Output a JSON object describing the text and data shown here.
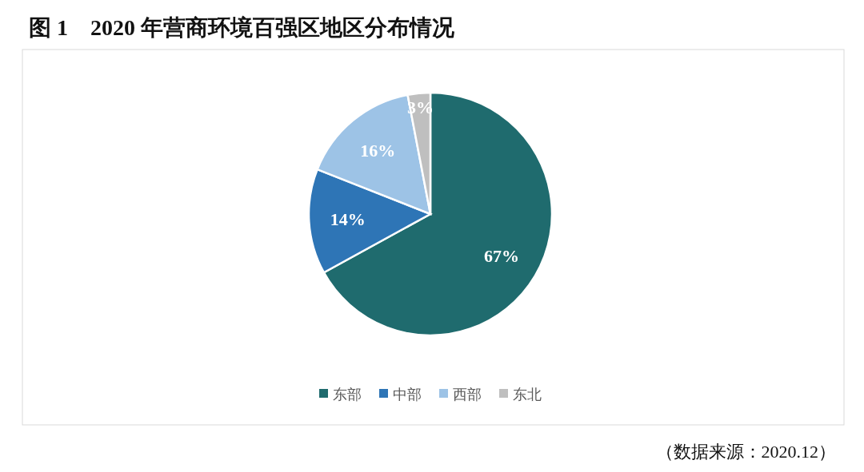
{
  "chart_data": {
    "type": "pie",
    "title": "图 1　2020 年营商环境百强区地区分布情况",
    "categories": [
      "东部",
      "中部",
      "西部",
      "东北"
    ],
    "values": [
      67,
      14,
      16,
      3
    ],
    "colors": [
      "#1f6b6e",
      "#2e75b6",
      "#9dc3e6",
      "#bfbfbf"
    ],
    "value_labels": [
      "67%",
      "14%",
      "16%",
      "3%"
    ],
    "legend": "bottom",
    "annotations": [
      "（数据来源：2020.12）"
    ]
  }
}
